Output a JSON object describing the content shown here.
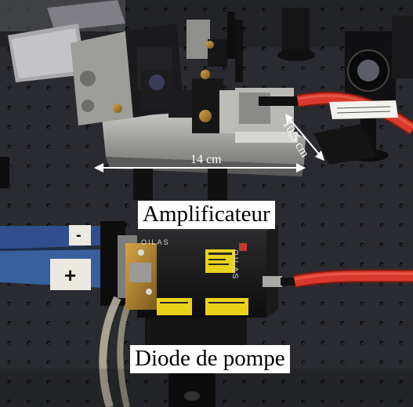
{
  "image": {
    "captions": {
      "amplifier": "Amplificateur",
      "pump_diode": "Diode de pompe"
    },
    "dimensions": {
      "width_label": "14 cm",
      "length_label": "10,5 cm"
    },
    "device_marks": {
      "brand": "OILAS",
      "polarity_minus": "-",
      "polarity_plus": "+"
    },
    "colors": {
      "optical_table": "#2a2b30",
      "fiber_jacket": "#d9382c",
      "diode_body": "#161616",
      "warning_label": "#e9d21a",
      "brass_mount": "#b8892f",
      "ribbon_cable": "#2f4f8f",
      "caption_background": "#ffffff"
    }
  }
}
